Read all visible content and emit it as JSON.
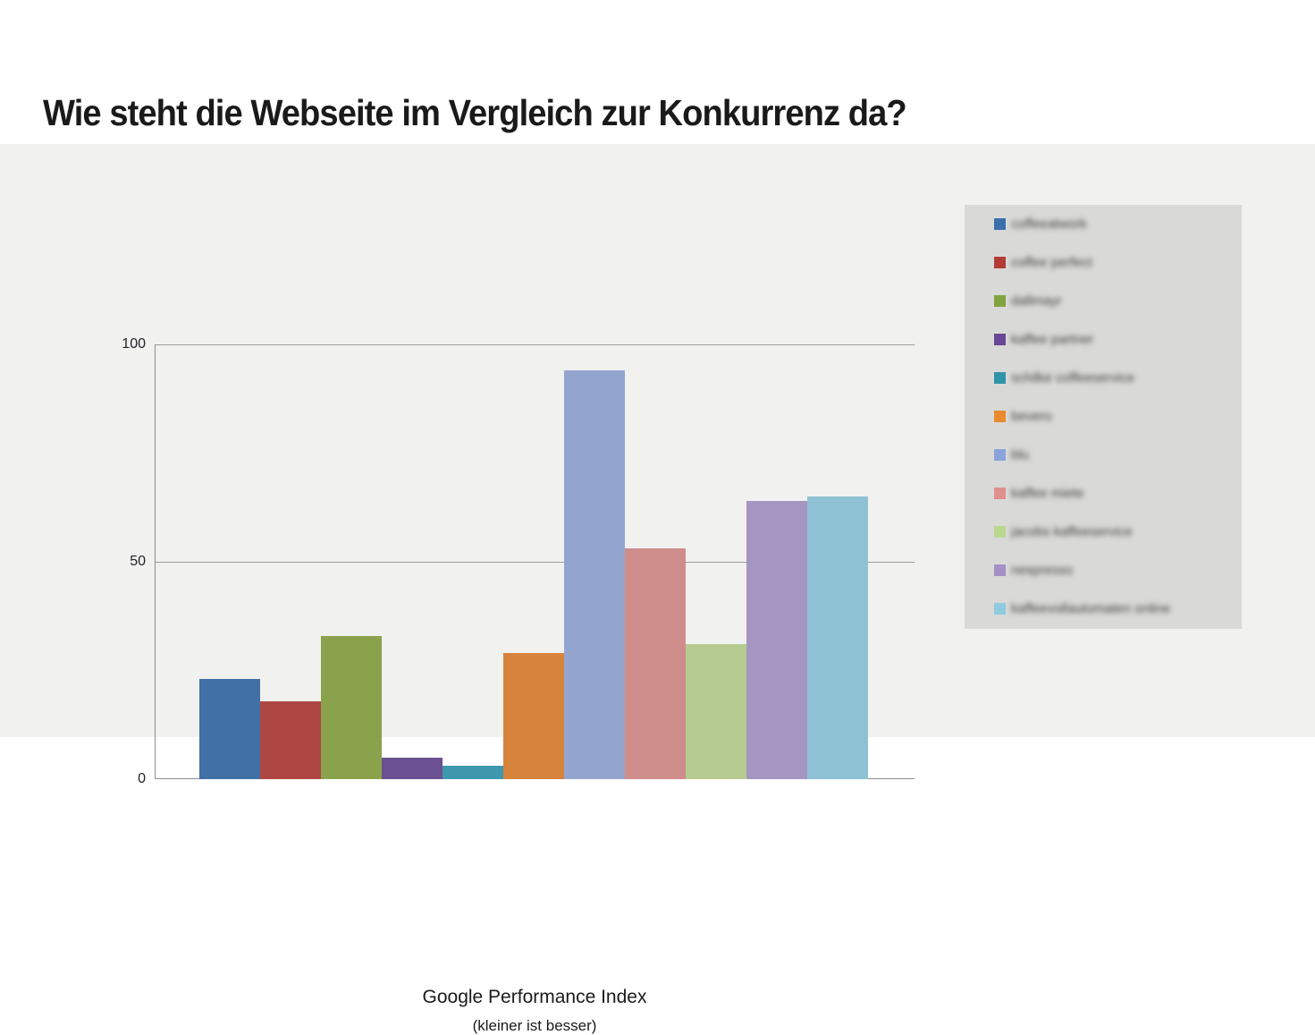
{
  "page": {
    "title": "Wie steht die Webseite im Vergleich zur Konkurrenz da?"
  },
  "chart_data": {
    "type": "bar",
    "title": "",
    "xlabel": "Google Performance Index",
    "xlabel_note": "(kleiner ist besser)",
    "ylabel": "",
    "ylim": [
      0,
      100
    ],
    "yticks": [
      100,
      50,
      0
    ],
    "grid": "horizontal gridlines at 50 and 100",
    "legend_position": "right",
    "legend_labels_blurred": true,
    "categories": [
      "Google Performance Index"
    ],
    "series": [
      {
        "label": "coffeeatwork",
        "value": 23,
        "bar_color": "#4070A6",
        "swatch_color": "#3B6EAC"
      },
      {
        "label": "coffee perfect",
        "value": 18,
        "bar_color": "#AE4744",
        "swatch_color": "#B23B38"
      },
      {
        "label": "dallmayr",
        "value": 33,
        "bar_color": "#8AA24C",
        "swatch_color": "#81A33F"
      },
      {
        "label": "kaffee partner",
        "value": 5,
        "bar_color": "#6B5191",
        "swatch_color": "#6A4794"
      },
      {
        "label": "schilke coffeeservice",
        "value": 3,
        "bar_color": "#3D98AD",
        "swatch_color": "#3094A9"
      },
      {
        "label": "bevero",
        "value": 29,
        "bar_color": "#D8833B",
        "swatch_color": "#E98A2E"
      },
      {
        "label": "blu",
        "value": 94,
        "bar_color": "#93A5CF",
        "swatch_color": "#8AA4DB"
      },
      {
        "label": "kaffee miete",
        "value": 53,
        "bar_color": "#CF8D8B",
        "swatch_color": "#DF8F8D"
      },
      {
        "label": "jacobs kaffeeservice",
        "value": 31,
        "bar_color": "#B6CB90",
        "swatch_color": "#B9D88E"
      },
      {
        "label": "nespresso",
        "value": 64,
        "bar_color": "#A495C1",
        "swatch_color": "#A590C7"
      },
      {
        "label": "kaffeevollautomaten online",
        "value": 65,
        "bar_color": "#8FC1D5",
        "swatch_color": "#8FCAE1"
      }
    ]
  },
  "colors": {
    "page_background": "#ffffff",
    "chart_band_background": "#f1f1ef",
    "legend_panel_background": "#d9d9d8",
    "axis_line": "#8c8c8c",
    "gridline": "#9b9b9b",
    "text": "#1a1a1a"
  }
}
